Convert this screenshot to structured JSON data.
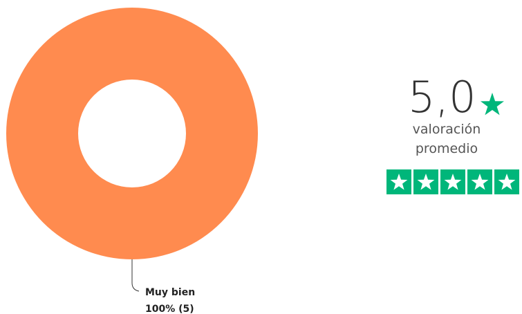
{
  "chart_data": {
    "type": "donut",
    "categories": [
      "Muy bien"
    ],
    "values": [
      100
    ],
    "value_labels": [
      "100% (5)"
    ],
    "colors": [
      "#ff8b4f"
    ]
  },
  "rating": {
    "value": "5,0",
    "label_lines": [
      "valoración",
      "promedio"
    ]
  }
}
